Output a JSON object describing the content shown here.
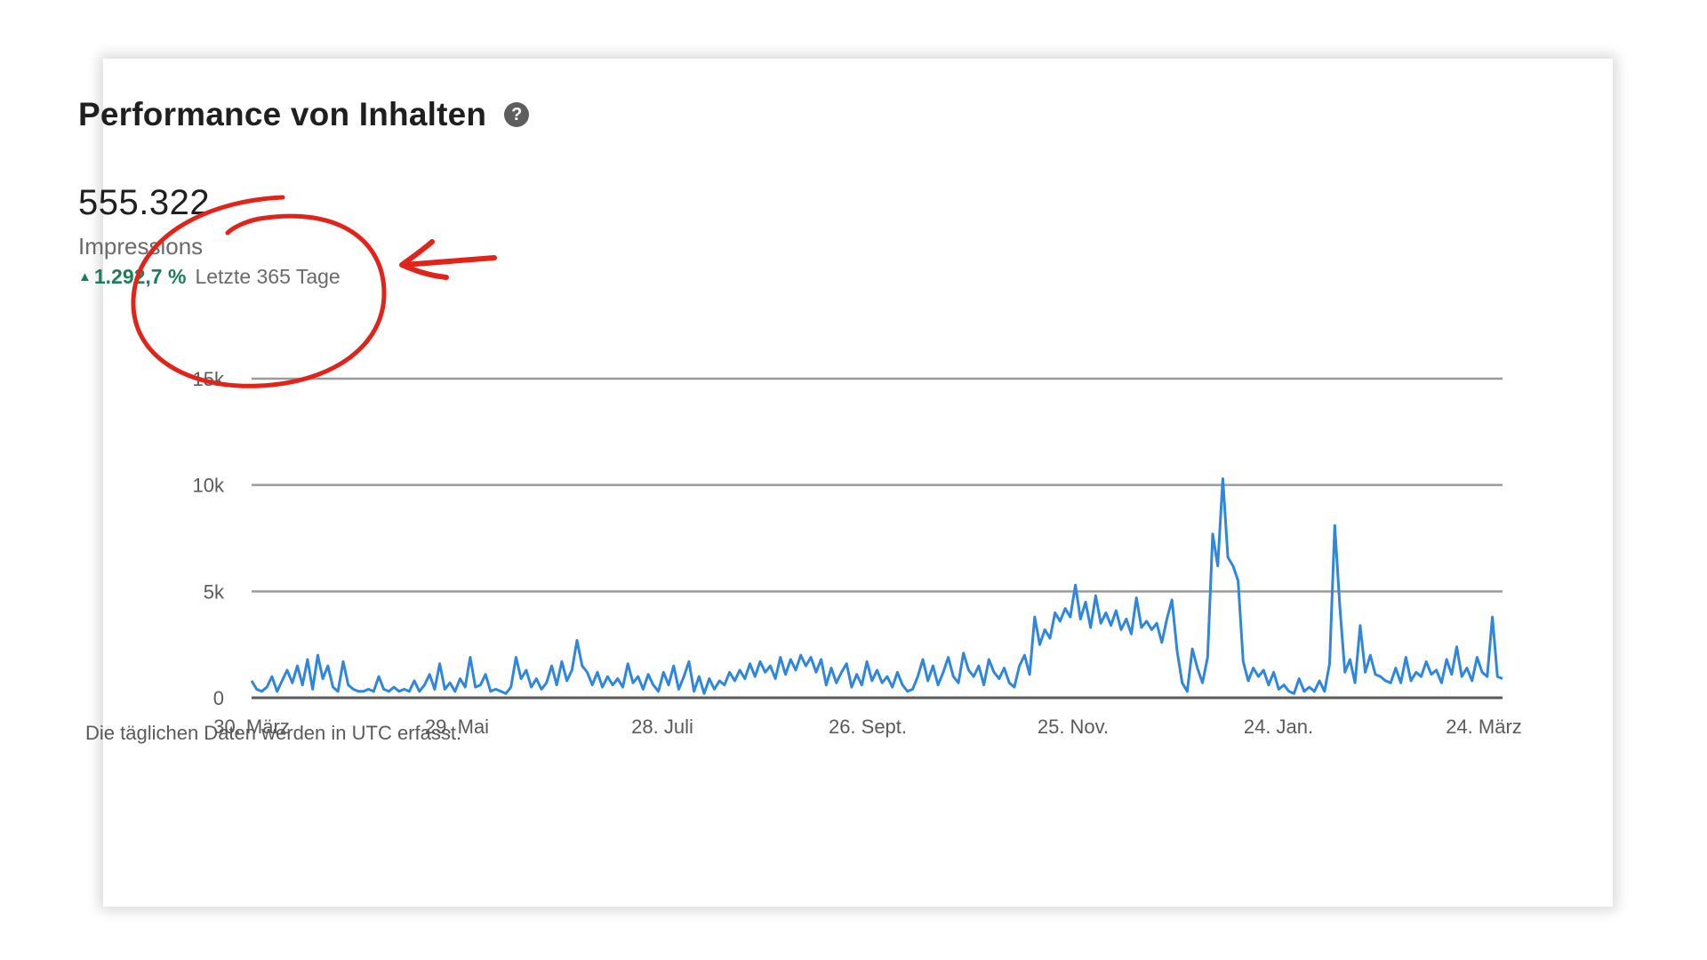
{
  "header": {
    "title": "Performance von Inhalten",
    "help_icon": "question-circle-icon"
  },
  "metric": {
    "value": "555.322",
    "label": "Impressions",
    "trend_value": "1.292,7 %",
    "trend_period": "Letzte 365 Tage",
    "trend_direction": "up",
    "trend_color": "#1a7f5a"
  },
  "chart_data": {
    "type": "line",
    "title": "",
    "xlabel": "",
    "ylabel": "",
    "ylim": [
      0,
      15000
    ],
    "yticks": [
      0,
      5000,
      10000,
      15000
    ],
    "ytick_labels": [
      "0",
      "5k",
      "10k",
      "15k"
    ],
    "xticks": [
      "30. März",
      "29. Mai",
      "28. Juli",
      "26. Sept.",
      "25. Nov.",
      "24. Jan.",
      "24. März"
    ],
    "xtick_days": [
      0,
      60,
      120,
      180,
      240,
      300,
      360
    ],
    "grid": true,
    "legend": "none",
    "series": [
      {
        "color": "#2f86dd",
        "points": [
          [
            0,
            800
          ],
          [
            2,
            400
          ],
          [
            4,
            300
          ],
          [
            6,
            500
          ],
          [
            8,
            1000
          ],
          [
            10,
            300
          ],
          [
            12,
            800
          ],
          [
            14,
            1300
          ],
          [
            16,
            700
          ],
          [
            18,
            1500
          ],
          [
            20,
            600
          ],
          [
            22,
            1800
          ],
          [
            24,
            400
          ],
          [
            26,
            2000
          ],
          [
            28,
            900
          ],
          [
            30,
            1500
          ],
          [
            32,
            500
          ],
          [
            34,
            300
          ],
          [
            36,
            1700
          ],
          [
            38,
            600
          ],
          [
            40,
            400
          ],
          [
            42,
            300
          ],
          [
            44,
            300
          ],
          [
            46,
            400
          ],
          [
            48,
            300
          ],
          [
            50,
            1000
          ],
          [
            52,
            400
          ],
          [
            54,
            300
          ],
          [
            56,
            500
          ],
          [
            58,
            300
          ],
          [
            60,
            400
          ],
          [
            62,
            300
          ],
          [
            64,
            800
          ],
          [
            66,
            300
          ],
          [
            68,
            600
          ],
          [
            70,
            1100
          ],
          [
            72,
            400
          ],
          [
            74,
            1600
          ],
          [
            76,
            400
          ],
          [
            78,
            700
          ],
          [
            80,
            300
          ],
          [
            82,
            900
          ],
          [
            84,
            500
          ],
          [
            86,
            1900
          ],
          [
            88,
            500
          ],
          [
            90,
            600
          ],
          [
            92,
            1100
          ],
          [
            94,
            300
          ],
          [
            96,
            400
          ],
          [
            98,
            300
          ],
          [
            100,
            200
          ],
          [
            102,
            500
          ],
          [
            104,
            1900
          ],
          [
            106,
            900
          ],
          [
            108,
            1300
          ],
          [
            110,
            500
          ],
          [
            112,
            900
          ],
          [
            114,
            400
          ],
          [
            116,
            700
          ],
          [
            118,
            1500
          ],
          [
            120,
            600
          ],
          [
            122,
            1700
          ],
          [
            124,
            800
          ],
          [
            126,
            1300
          ],
          [
            128,
            2700
          ],
          [
            130,
            1500
          ],
          [
            132,
            1200
          ],
          [
            134,
            600
          ],
          [
            136,
            1200
          ],
          [
            138,
            500
          ],
          [
            140,
            1000
          ],
          [
            142,
            600
          ],
          [
            144,
            900
          ],
          [
            146,
            500
          ],
          [
            148,
            1600
          ],
          [
            150,
            700
          ],
          [
            152,
            1000
          ],
          [
            154,
            400
          ],
          [
            156,
            1100
          ],
          [
            158,
            600
          ],
          [
            160,
            300
          ],
          [
            162,
            1200
          ],
          [
            164,
            600
          ],
          [
            166,
            1500
          ],
          [
            168,
            400
          ],
          [
            170,
            1000
          ],
          [
            172,
            1700
          ],
          [
            174,
            300
          ],
          [
            176,
            1000
          ],
          [
            178,
            200
          ],
          [
            180,
            900
          ],
          [
            182,
            400
          ],
          [
            184,
            800
          ],
          [
            186,
            600
          ],
          [
            188,
            1200
          ],
          [
            190,
            800
          ],
          [
            192,
            1300
          ],
          [
            194,
            900
          ],
          [
            196,
            1600
          ],
          [
            198,
            1000
          ],
          [
            200,
            1700
          ],
          [
            202,
            1200
          ],
          [
            204,
            1500
          ],
          [
            206,
            900
          ],
          [
            208,
            1900
          ],
          [
            210,
            1100
          ],
          [
            212,
            1800
          ],
          [
            214,
            1300
          ],
          [
            216,
            2000
          ],
          [
            218,
            1500
          ],
          [
            220,
            1900
          ],
          [
            222,
            1200
          ],
          [
            224,
            1800
          ],
          [
            226,
            600
          ],
          [
            228,
            1400
          ],
          [
            230,
            700
          ],
          [
            232,
            1200
          ],
          [
            234,
            1600
          ],
          [
            236,
            500
          ],
          [
            238,
            1100
          ],
          [
            240,
            600
          ],
          [
            242,
            1700
          ],
          [
            244,
            800
          ],
          [
            246,
            1300
          ],
          [
            248,
            700
          ],
          [
            250,
            1000
          ],
          [
            252,
            500
          ],
          [
            254,
            1200
          ],
          [
            256,
            600
          ],
          [
            258,
            300
          ],
          [
            260,
            400
          ],
          [
            262,
            1000
          ],
          [
            264,
            1800
          ],
          [
            266,
            800
          ],
          [
            268,
            1500
          ],
          [
            270,
            600
          ],
          [
            272,
            1200
          ],
          [
            274,
            1900
          ],
          [
            276,
            1000
          ],
          [
            278,
            700
          ],
          [
            280,
            2100
          ],
          [
            282,
            1300
          ],
          [
            284,
            1000
          ],
          [
            286,
            1500
          ],
          [
            288,
            600
          ],
          [
            290,
            1800
          ],
          [
            292,
            1200
          ],
          [
            294,
            900
          ],
          [
            296,
            1400
          ],
          [
            298,
            700
          ],
          [
            300,
            500
          ],
          [
            302,
            1500
          ],
          [
            304,
            2000
          ],
          [
            306,
            1100
          ],
          [
            308,
            3800
          ],
          [
            310,
            2500
          ],
          [
            312,
            3200
          ],
          [
            314,
            2800
          ],
          [
            316,
            4000
          ],
          [
            318,
            3600
          ],
          [
            320,
            4200
          ],
          [
            322,
            3800
          ],
          [
            324,
            5300
          ],
          [
            326,
            3700
          ],
          [
            328,
            4500
          ],
          [
            330,
            3300
          ],
          [
            332,
            4800
          ],
          [
            334,
            3500
          ],
          [
            336,
            4000
          ],
          [
            338,
            3400
          ],
          [
            340,
            4100
          ],
          [
            342,
            3200
          ],
          [
            344,
            3700
          ],
          [
            346,
            3000
          ],
          [
            348,
            4700
          ],
          [
            350,
            3300
          ],
          [
            352,
            3600
          ],
          [
            354,
            3200
          ],
          [
            356,
            3500
          ],
          [
            358,
            2600
          ],
          [
            360,
            3700
          ],
          [
            362,
            4600
          ],
          [
            364,
            2200
          ],
          [
            366,
            700
          ],
          [
            368,
            300
          ],
          [
            370,
            2300
          ],
          [
            372,
            1400
          ],
          [
            374,
            700
          ],
          [
            376,
            1900
          ],
          [
            378,
            7700
          ],
          [
            380,
            6200
          ],
          [
            382,
            10300
          ],
          [
            384,
            6600
          ],
          [
            386,
            6200
          ],
          [
            388,
            5500
          ],
          [
            390,
            1700
          ],
          [
            392,
            800
          ],
          [
            394,
            1400
          ],
          [
            396,
            1000
          ],
          [
            398,
            1300
          ],
          [
            400,
            600
          ],
          [
            402,
            1200
          ],
          [
            404,
            400
          ],
          [
            406,
            600
          ],
          [
            408,
            300
          ],
          [
            410,
            200
          ],
          [
            412,
            900
          ],
          [
            414,
            300
          ],
          [
            416,
            500
          ],
          [
            418,
            300
          ],
          [
            420,
            800
          ],
          [
            422,
            300
          ],
          [
            424,
            1600
          ],
          [
            426,
            8100
          ],
          [
            428,
            4300
          ],
          [
            430,
            1200
          ],
          [
            432,
            1800
          ],
          [
            434,
            700
          ],
          [
            436,
            3400
          ],
          [
            438,
            1200
          ],
          [
            440,
            2000
          ],
          [
            442,
            1100
          ],
          [
            444,
            1000
          ],
          [
            446,
            800
          ],
          [
            448,
            700
          ],
          [
            450,
            1400
          ],
          [
            452,
            700
          ],
          [
            454,
            1900
          ],
          [
            456,
            800
          ],
          [
            458,
            1200
          ],
          [
            460,
            1000
          ],
          [
            462,
            1700
          ],
          [
            464,
            1100
          ],
          [
            466,
            1300
          ],
          [
            468,
            700
          ],
          [
            470,
            1800
          ],
          [
            472,
            1100
          ],
          [
            474,
            2400
          ],
          [
            476,
            1000
          ],
          [
            478,
            1400
          ],
          [
            480,
            800
          ],
          [
            482,
            1900
          ],
          [
            484,
            1200
          ],
          [
            486,
            1000
          ],
          [
            488,
            3800
          ],
          [
            490,
            1000
          ],
          [
            492,
            900
          ]
        ]
      }
    ]
  },
  "annotation": {
    "circle_color": "#e2231a",
    "arrow_color": "#e2231a"
  },
  "footer": {
    "note": "Die täglichen Daten werden in UTC erfasst."
  }
}
